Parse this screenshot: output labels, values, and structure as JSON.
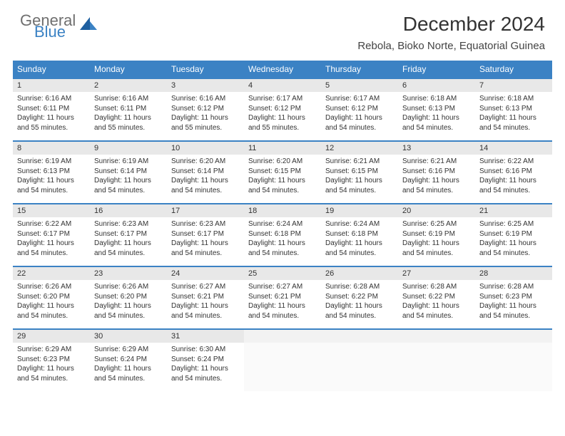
{
  "brand": {
    "general": "General",
    "blue": "Blue"
  },
  "title": "December 2024",
  "location": "Rebola, Bioko Norte, Equatorial Guinea",
  "colors": {
    "header_bg": "#3b82c4",
    "header_text": "#ffffff",
    "daynum_bg": "#e8e8e8",
    "border": "#3b82c4",
    "body_text": "#333333",
    "logo_gray": "#6f6f6f",
    "logo_blue": "#3b82c4"
  },
  "typography": {
    "title_fontsize": 28,
    "location_fontsize": 15,
    "dow_fontsize": 12,
    "daynum_fontsize": 11,
    "cell_fontsize": 10
  },
  "days_of_week": [
    "Sunday",
    "Monday",
    "Tuesday",
    "Wednesday",
    "Thursday",
    "Friday",
    "Saturday"
  ],
  "weeks": [
    [
      {
        "n": "1",
        "sunrise": "Sunrise: 6:16 AM",
        "sunset": "Sunset: 6:11 PM",
        "day1": "Daylight: 11 hours",
        "day2": "and 55 minutes."
      },
      {
        "n": "2",
        "sunrise": "Sunrise: 6:16 AM",
        "sunset": "Sunset: 6:11 PM",
        "day1": "Daylight: 11 hours",
        "day2": "and 55 minutes."
      },
      {
        "n": "3",
        "sunrise": "Sunrise: 6:16 AM",
        "sunset": "Sunset: 6:12 PM",
        "day1": "Daylight: 11 hours",
        "day2": "and 55 minutes."
      },
      {
        "n": "4",
        "sunrise": "Sunrise: 6:17 AM",
        "sunset": "Sunset: 6:12 PM",
        "day1": "Daylight: 11 hours",
        "day2": "and 55 minutes."
      },
      {
        "n": "5",
        "sunrise": "Sunrise: 6:17 AM",
        "sunset": "Sunset: 6:12 PM",
        "day1": "Daylight: 11 hours",
        "day2": "and 54 minutes."
      },
      {
        "n": "6",
        "sunrise": "Sunrise: 6:18 AM",
        "sunset": "Sunset: 6:13 PM",
        "day1": "Daylight: 11 hours",
        "day2": "and 54 minutes."
      },
      {
        "n": "7",
        "sunrise": "Sunrise: 6:18 AM",
        "sunset": "Sunset: 6:13 PM",
        "day1": "Daylight: 11 hours",
        "day2": "and 54 minutes."
      }
    ],
    [
      {
        "n": "8",
        "sunrise": "Sunrise: 6:19 AM",
        "sunset": "Sunset: 6:13 PM",
        "day1": "Daylight: 11 hours",
        "day2": "and 54 minutes."
      },
      {
        "n": "9",
        "sunrise": "Sunrise: 6:19 AM",
        "sunset": "Sunset: 6:14 PM",
        "day1": "Daylight: 11 hours",
        "day2": "and 54 minutes."
      },
      {
        "n": "10",
        "sunrise": "Sunrise: 6:20 AM",
        "sunset": "Sunset: 6:14 PM",
        "day1": "Daylight: 11 hours",
        "day2": "and 54 minutes."
      },
      {
        "n": "11",
        "sunrise": "Sunrise: 6:20 AM",
        "sunset": "Sunset: 6:15 PM",
        "day1": "Daylight: 11 hours",
        "day2": "and 54 minutes."
      },
      {
        "n": "12",
        "sunrise": "Sunrise: 6:21 AM",
        "sunset": "Sunset: 6:15 PM",
        "day1": "Daylight: 11 hours",
        "day2": "and 54 minutes."
      },
      {
        "n": "13",
        "sunrise": "Sunrise: 6:21 AM",
        "sunset": "Sunset: 6:16 PM",
        "day1": "Daylight: 11 hours",
        "day2": "and 54 minutes."
      },
      {
        "n": "14",
        "sunrise": "Sunrise: 6:22 AM",
        "sunset": "Sunset: 6:16 PM",
        "day1": "Daylight: 11 hours",
        "day2": "and 54 minutes."
      }
    ],
    [
      {
        "n": "15",
        "sunrise": "Sunrise: 6:22 AM",
        "sunset": "Sunset: 6:17 PM",
        "day1": "Daylight: 11 hours",
        "day2": "and 54 minutes."
      },
      {
        "n": "16",
        "sunrise": "Sunrise: 6:23 AM",
        "sunset": "Sunset: 6:17 PM",
        "day1": "Daylight: 11 hours",
        "day2": "and 54 minutes."
      },
      {
        "n": "17",
        "sunrise": "Sunrise: 6:23 AM",
        "sunset": "Sunset: 6:17 PM",
        "day1": "Daylight: 11 hours",
        "day2": "and 54 minutes."
      },
      {
        "n": "18",
        "sunrise": "Sunrise: 6:24 AM",
        "sunset": "Sunset: 6:18 PM",
        "day1": "Daylight: 11 hours",
        "day2": "and 54 minutes."
      },
      {
        "n": "19",
        "sunrise": "Sunrise: 6:24 AM",
        "sunset": "Sunset: 6:18 PM",
        "day1": "Daylight: 11 hours",
        "day2": "and 54 minutes."
      },
      {
        "n": "20",
        "sunrise": "Sunrise: 6:25 AM",
        "sunset": "Sunset: 6:19 PM",
        "day1": "Daylight: 11 hours",
        "day2": "and 54 minutes."
      },
      {
        "n": "21",
        "sunrise": "Sunrise: 6:25 AM",
        "sunset": "Sunset: 6:19 PM",
        "day1": "Daylight: 11 hours",
        "day2": "and 54 minutes."
      }
    ],
    [
      {
        "n": "22",
        "sunrise": "Sunrise: 6:26 AM",
        "sunset": "Sunset: 6:20 PM",
        "day1": "Daylight: 11 hours",
        "day2": "and 54 minutes."
      },
      {
        "n": "23",
        "sunrise": "Sunrise: 6:26 AM",
        "sunset": "Sunset: 6:20 PM",
        "day1": "Daylight: 11 hours",
        "day2": "and 54 minutes."
      },
      {
        "n": "24",
        "sunrise": "Sunrise: 6:27 AM",
        "sunset": "Sunset: 6:21 PM",
        "day1": "Daylight: 11 hours",
        "day2": "and 54 minutes."
      },
      {
        "n": "25",
        "sunrise": "Sunrise: 6:27 AM",
        "sunset": "Sunset: 6:21 PM",
        "day1": "Daylight: 11 hours",
        "day2": "and 54 minutes."
      },
      {
        "n": "26",
        "sunrise": "Sunrise: 6:28 AM",
        "sunset": "Sunset: 6:22 PM",
        "day1": "Daylight: 11 hours",
        "day2": "and 54 minutes."
      },
      {
        "n": "27",
        "sunrise": "Sunrise: 6:28 AM",
        "sunset": "Sunset: 6:22 PM",
        "day1": "Daylight: 11 hours",
        "day2": "and 54 minutes."
      },
      {
        "n": "28",
        "sunrise": "Sunrise: 6:28 AM",
        "sunset": "Sunset: 6:23 PM",
        "day1": "Daylight: 11 hours",
        "day2": "and 54 minutes."
      }
    ],
    [
      {
        "n": "29",
        "sunrise": "Sunrise: 6:29 AM",
        "sunset": "Sunset: 6:23 PM",
        "day1": "Daylight: 11 hours",
        "day2": "and 54 minutes."
      },
      {
        "n": "30",
        "sunrise": "Sunrise: 6:29 AM",
        "sunset": "Sunset: 6:24 PM",
        "day1": "Daylight: 11 hours",
        "day2": "and 54 minutes."
      },
      {
        "n": "31",
        "sunrise": "Sunrise: 6:30 AM",
        "sunset": "Sunset: 6:24 PM",
        "day1": "Daylight: 11 hours",
        "day2": "and 54 minutes."
      },
      null,
      null,
      null,
      null
    ]
  ]
}
